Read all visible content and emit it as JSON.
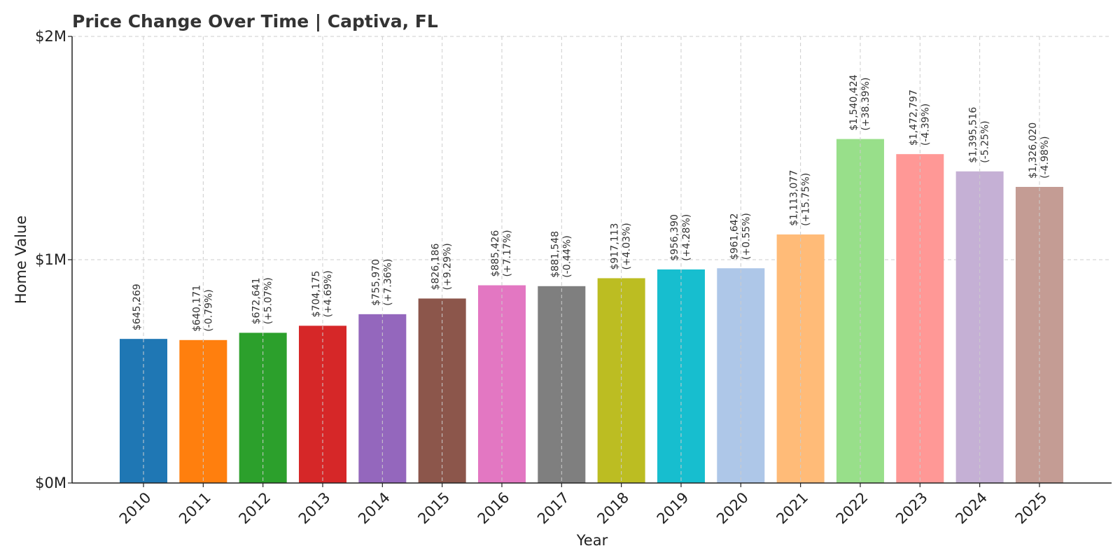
{
  "chart_data": {
    "type": "bar",
    "title": "Price Change Over Time | Captiva, FL",
    "xlabel": "Year",
    "ylabel": "Home Value",
    "ylim": [
      0,
      2000000
    ],
    "yticks": [
      {
        "value": 0,
        "label": "$0M"
      },
      {
        "value": 1000000,
        "label": "$1M"
      },
      {
        "value": 2000000,
        "label": "$2M"
      }
    ],
    "grid": true,
    "categories": [
      "2010",
      "2011",
      "2012",
      "2013",
      "2014",
      "2015",
      "2016",
      "2017",
      "2018",
      "2019",
      "2020",
      "2021",
      "2022",
      "2023",
      "2024",
      "2025"
    ],
    "values": [
      645269,
      640171,
      672641,
      704175,
      755970,
      826186,
      885426,
      881548,
      917113,
      956390,
      961642,
      1113077,
      1540424,
      1472797,
      1395516,
      1326020
    ],
    "value_labels": [
      "$645,269",
      "$640,171",
      "$672,641",
      "$704,175",
      "$755,970",
      "$826,186",
      "$885,426",
      "$881,548",
      "$917,113",
      "$956,390",
      "$961,642",
      "$1,113,077",
      "$1,540,424",
      "$1,472,797",
      "$1,395,516",
      "$1,326,020"
    ],
    "change_labels": [
      "",
      "(-0.79%)",
      "(+5.07%)",
      "(+4.69%)",
      "(+7.36%)",
      "(+9.29%)",
      "(+7.17%)",
      "(-0.44%)",
      "(+4.03%)",
      "(+4.28%)",
      "(+0.55%)",
      "(+15.75%)",
      "(+38.39%)",
      "(-4.39%)",
      "(-5.25%)",
      "(-4.98%)"
    ],
    "colors": [
      "#1f77b4",
      "#ff7f0e",
      "#2ca02c",
      "#d62728",
      "#9467bd",
      "#8c564b",
      "#e377c2",
      "#7f7f7f",
      "#bcbd22",
      "#17becf",
      "#aec7e8",
      "#ffbb78",
      "#98df8a",
      "#ff9896",
      "#c5b0d5",
      "#c49c94"
    ]
  }
}
